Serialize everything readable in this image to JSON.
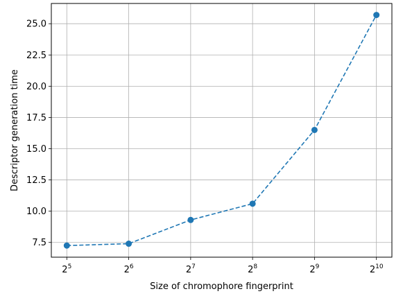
{
  "chart_data": {
    "type": "line",
    "title": "",
    "xlabel": "Size of chromophore fingerprint",
    "ylabel": "Descriptor generation time",
    "x_scale": "log2",
    "x": [
      32,
      64,
      128,
      256,
      512,
      1024
    ],
    "xtick_labels": [
      {
        "base": "2",
        "exp": "5"
      },
      {
        "base": "2",
        "exp": "6"
      },
      {
        "base": "2",
        "exp": "7"
      },
      {
        "base": "2",
        "exp": "8"
      },
      {
        "base": "2",
        "exp": "9"
      },
      {
        "base": "2",
        "exp": "10"
      }
    ],
    "series": [
      {
        "values": [
          7.25,
          7.4,
          9.3,
          10.6,
          16.5,
          25.7
        ],
        "color": "#1f77b4",
        "line_style": "dashed",
        "marker": "circle"
      }
    ],
    "yticks": [
      "7.5",
      "10.0",
      "12.5",
      "15.0",
      "17.5",
      "20.0",
      "22.5",
      "25.0"
    ],
    "ylim": [
      6.32,
      26.62
    ],
    "grid": true
  }
}
